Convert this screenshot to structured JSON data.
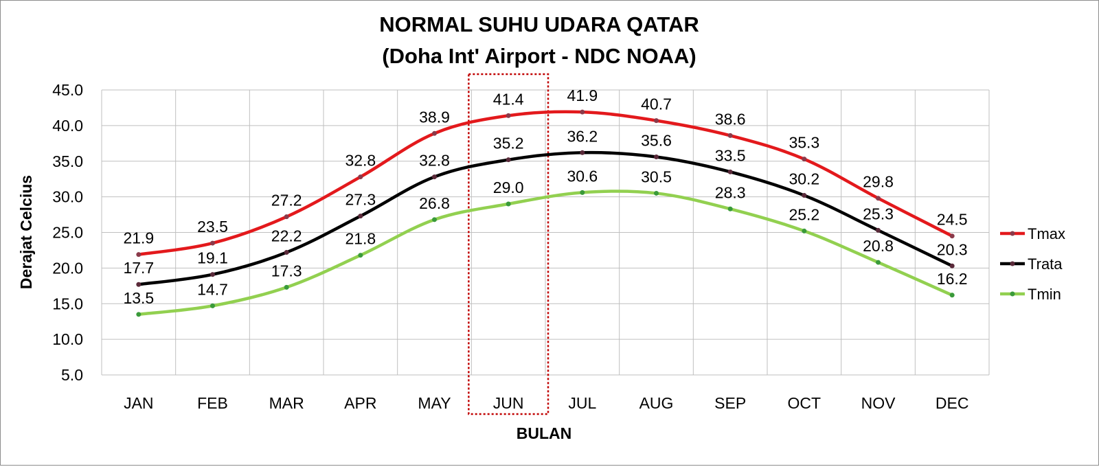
{
  "chart_data": {
    "type": "line",
    "title": "NORMAL SUHU UDARA QATAR",
    "subtitle": "(Doha Int' Airport - NDC NOAA)",
    "xlabel": "BULAN",
    "ylabel": "Derajat Celcius",
    "ylim": [
      5,
      45
    ],
    "yticks": [
      "5.0",
      "10.0",
      "15.0",
      "20.0",
      "25.0",
      "30.0",
      "35.0",
      "40.0",
      "45.0"
    ],
    "ytick_values": [
      5,
      10,
      15,
      20,
      25,
      30,
      35,
      40,
      45
    ],
    "categories": [
      "JAN",
      "FEB",
      "MAR",
      "APR",
      "MAY",
      "JUN",
      "JUL",
      "AUG",
      "SEP",
      "OCT",
      "NOV",
      "DEC"
    ],
    "grid": true,
    "legend_position": "right",
    "highlight": {
      "category": "JUN",
      "style": "dotted red box"
    },
    "series": [
      {
        "name": "Tmax",
        "color": "#e3191c",
        "values": [
          21.9,
          23.5,
          27.2,
          32.8,
          38.9,
          41.4,
          41.9,
          40.7,
          38.6,
          35.3,
          29.8,
          24.5
        ]
      },
      {
        "name": "Trata",
        "color": "#000000",
        "values": [
          17.7,
          19.1,
          22.2,
          27.3,
          32.8,
          35.2,
          36.2,
          35.6,
          33.5,
          30.2,
          25.3,
          20.3
        ]
      },
      {
        "name": "Tmin",
        "color": "#92d050",
        "values": [
          13.5,
          14.7,
          17.3,
          21.8,
          26.8,
          29.0,
          30.6,
          30.5,
          28.3,
          25.2,
          20.8,
          16.2
        ]
      }
    ]
  }
}
